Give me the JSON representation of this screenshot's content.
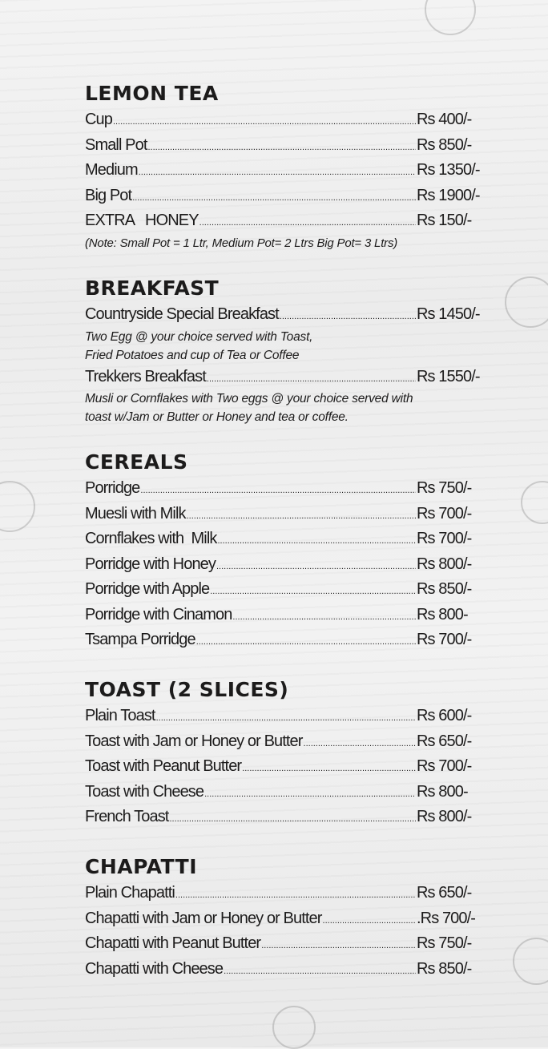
{
  "sections": [
    {
      "title": "LEMON TEA",
      "items": [
        {
          "name": "Cup",
          "price": "Rs 400/-"
        },
        {
          "name": "Small Pot",
          "price": "Rs 850/-"
        },
        {
          "name": "Medium",
          "price": "Rs 1350/-"
        },
        {
          "name": "Big Pot",
          "price": "Rs 1900/-"
        },
        {
          "name": "EXTRA   HONEY",
          "price": "Rs 150/-"
        }
      ],
      "note": "(Note: Small Pot = 1 Ltr,  Medium Pot= 2 Ltrs   Big Pot= 3 Ltrs)"
    },
    {
      "title": "BREAKFAST",
      "items": [
        {
          "name": "Countryside Special Breakfast",
          "price": "Rs 1450/-",
          "desc": [
            "Two Egg @ your choice served with Toast,",
            "Fried Potatoes and cup of Tea or Coffee"
          ]
        },
        {
          "name": "Trekkers Breakfast",
          "price": "Rs 1550/-",
          "desc": [
            "Musli or Cornflakes with Two eggs @ your choice  served with",
            "toast w/Jam or Butter or Honey and tea or coffee."
          ]
        }
      ]
    },
    {
      "title": "CEREALS",
      "items": [
        {
          "name": "Porridge",
          "price": "Rs 750/-"
        },
        {
          "name": "Muesli with Milk",
          "price": "Rs 700/-"
        },
        {
          "name": "Cornflakes with  Milk",
          "price": "Rs 700/-"
        },
        {
          "name": "Porridge with Honey",
          "price": "Rs 800/-"
        },
        {
          "name": "Porridge with Apple",
          "price": "Rs 850/-"
        },
        {
          "name": "Porridge with Cinamon",
          "price": "Rs 800-"
        },
        {
          "name": "Tsampa Porridge",
          "price": "Rs 700/-"
        }
      ]
    },
    {
      "title": "TOAST (2 SLICES)",
      "items": [
        {
          "name": "Plain Toast",
          "price": "Rs 600/-"
        },
        {
          "name": "Toast with Jam or Honey or Butter",
          "price": "Rs 650/-"
        },
        {
          "name": "Toast with Peanut Butter",
          "price": "Rs 700/-"
        },
        {
          "name": "Toast with Cheese",
          "price": "Rs 800-"
        },
        {
          "name": "French Toast",
          "price": "Rs 800/-"
        }
      ]
    },
    {
      "title": "CHAPATTI",
      "items": [
        {
          "name": "Plain Chapatti",
          "price": "Rs 650/-"
        },
        {
          "name": "Chapatti with Jam or Honey or Butter",
          "price": ".Rs 700/-"
        },
        {
          "name": "Chapatti with Peanut Butter",
          "price": "Rs 750/-"
        },
        {
          "name": "Chapatti with Cheese",
          "price": "Rs 850/-"
        }
      ]
    }
  ]
}
